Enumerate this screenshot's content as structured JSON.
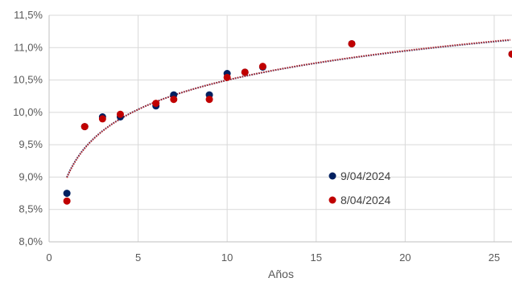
{
  "chart_data": {
    "type": "scatter",
    "title": "",
    "xlabel": "Años",
    "ylabel": "",
    "xlim": [
      0,
      26
    ],
    "ylim": [
      8.0,
      11.5
    ],
    "x_ticks": [
      {
        "value": 0,
        "label": "0"
      },
      {
        "value": 5,
        "label": "5"
      },
      {
        "value": 10,
        "label": "10"
      },
      {
        "value": 15,
        "label": "15"
      },
      {
        "value": 20,
        "label": "20"
      },
      {
        "value": 25,
        "label": "25"
      }
    ],
    "y_ticks": [
      {
        "value": 8.0,
        "label": "8,0%"
      },
      {
        "value": 8.5,
        "label": "8,5%"
      },
      {
        "value": 9.0,
        "label": "9,0%"
      },
      {
        "value": 9.5,
        "label": "9,5%"
      },
      {
        "value": 10.0,
        "label": "10,0%"
      },
      {
        "value": 10.5,
        "label": "10,5%"
      },
      {
        "value": 11.0,
        "label": "11,0%"
      },
      {
        "value": 11.5,
        "label": "11,5%"
      }
    ],
    "grid": true,
    "legend_position": "lower-right",
    "series": [
      {
        "name": "9/04/2024",
        "color": "#002060",
        "x": [
          1,
          2,
          3,
          4,
          6,
          7,
          9,
          10,
          11,
          12,
          17,
          26
        ],
        "y": [
          8.75,
          9.78,
          9.93,
          9.93,
          10.1,
          10.27,
          10.27,
          10.6,
          10.62,
          10.7,
          11.06,
          10.9
        ]
      },
      {
        "name": "8/04/2024",
        "color": "#C00000",
        "x": [
          1,
          2,
          3,
          4,
          6,
          7,
          9,
          10,
          11,
          12,
          17,
          26
        ],
        "y": [
          8.63,
          9.78,
          9.9,
          9.97,
          10.14,
          10.2,
          10.2,
          10.54,
          10.62,
          10.71,
          11.06,
          10.9
        ]
      }
    ],
    "trendlines": [
      {
        "color": "#002060",
        "type": "logarithmic",
        "a": 9.0,
        "b": 0.65
      },
      {
        "color": "#C00000",
        "type": "logarithmic",
        "a": 8.99,
        "b": 0.655
      }
    ]
  }
}
